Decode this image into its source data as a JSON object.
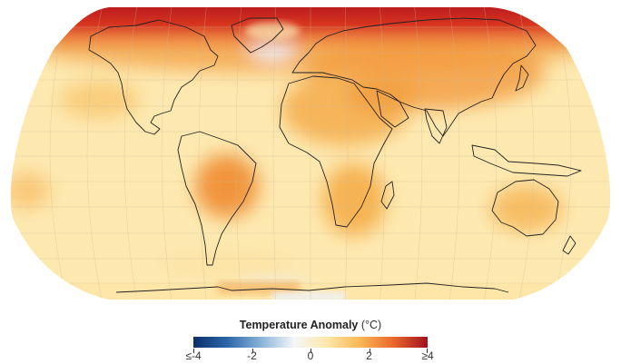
{
  "legend": {
    "title": "Temperature Anomaly",
    "unit": "(°C)",
    "ticks": [
      {
        "label": "≤-4",
        "value": -4
      },
      {
        "label": "-2",
        "value": -2
      },
      {
        "label": "0",
        "value": 0
      },
      {
        "label": "2",
        "value": 2
      },
      {
        "label": "≥4",
        "value": 4
      }
    ],
    "range": [
      -4,
      4
    ],
    "colors": [
      "#0b2f6a",
      "#2a66a8",
      "#86b2d8",
      "#f4f6f9",
      "#fde7a8",
      "#f9b653",
      "#e9662c",
      "#a1101e"
    ]
  },
  "map": {
    "projection": "Robinson (approx.)",
    "ocean_base_color": "#fdeab2",
    "gridlines": true
  }
}
